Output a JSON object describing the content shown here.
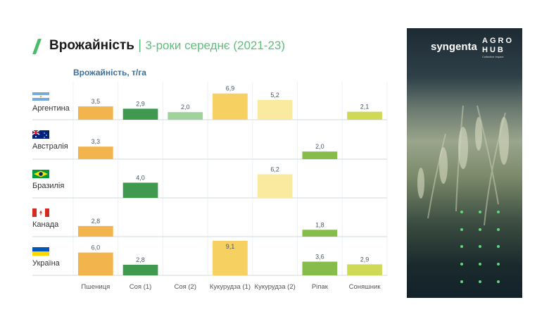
{
  "header": {
    "title": "Врожайність",
    "separator": "|",
    "subtitle": "3-роки середнє (2021-23)"
  },
  "side_panel": {
    "brand": "syngenta",
    "agro_line1": "AGRO",
    "agro_line2": "HUB",
    "tagline": "Collective Impact"
  },
  "chart_data": {
    "type": "bar",
    "title": "Врожайність, т/га",
    "ylabel": "Врожайність, т/га",
    "categories": [
      "Пшениця",
      "Соя (1)",
      "Соя (2)",
      "Кукурудза (1)",
      "Кукурудза (2)",
      "Ріпак",
      "Соняшник"
    ],
    "category_colors": [
      "#f2b44c",
      "#3f9a50",
      "#9fd39b",
      "#f7d062",
      "#f9eaa0",
      "#86bd4a",
      "#cfd955"
    ],
    "rows": [
      {
        "country": "Аргентина",
        "values": [
          3.5,
          2.9,
          2.0,
          6.9,
          5.2,
          null,
          2.1
        ],
        "labels": [
          "3,5",
          "2,9",
          "2,0",
          "6,9",
          "5,2",
          "",
          "2,1"
        ]
      },
      {
        "country": "Австралія",
        "values": [
          3.3,
          null,
          null,
          null,
          null,
          2.0,
          null
        ],
        "labels": [
          "3,3",
          "",
          "",
          "",
          "",
          "2,0",
          ""
        ]
      },
      {
        "country": "Бразилія",
        "values": [
          null,
          4.0,
          null,
          null,
          6.2,
          null,
          null
        ],
        "labels": [
          "",
          "4,0",
          "",
          "",
          "6,2",
          "",
          ""
        ]
      },
      {
        "country": "Канада",
        "values": [
          2.8,
          null,
          null,
          null,
          null,
          1.8,
          null
        ],
        "labels": [
          "2,8",
          "",
          "",
          "",
          "",
          "1,8",
          ""
        ]
      },
      {
        "country": "Україна",
        "values": [
          6.0,
          2.8,
          null,
          9.1,
          null,
          3.6,
          2.9
        ],
        "labels": [
          "6,0",
          "2,8",
          "",
          "9,1",
          "",
          "3,6",
          "2,9"
        ]
      }
    ]
  }
}
